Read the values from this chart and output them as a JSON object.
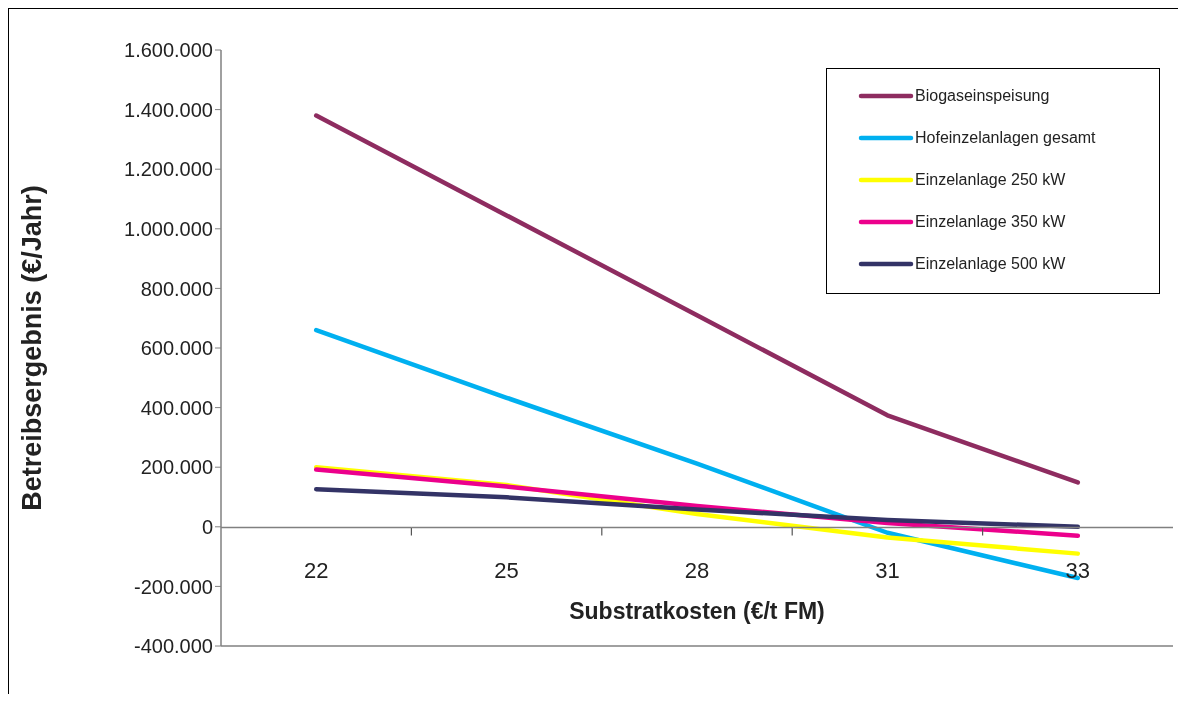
{
  "chart_data": {
    "type": "line",
    "xlabel": "Substratkosten (€/t FM)",
    "ylabel": "Betreibsergebnis (€/Jahr)",
    "categories": [
      "22",
      "25",
      "28",
      "31",
      "33"
    ],
    "series": [
      {
        "name": "Biogaseinspeisung",
        "color": "#8e2c60",
        "values": [
          1380000,
          1045000,
          710000,
          374000,
          149000
        ]
      },
      {
        "name": "Hofeinzelanlagen gesamt",
        "color": "#00b0f0",
        "values": [
          660000,
          433000,
          212000,
          -20000,
          -172000
        ]
      },
      {
        "name": "Einzelanlage 250 kW",
        "color": "#ffff00",
        "values": [
          200000,
          140000,
          43000,
          -36000,
          -90000
        ]
      },
      {
        "name": "Einzelanlage 350 kW",
        "color": "#ec008c",
        "values": [
          192000,
          135000,
          70000,
          13000,
          -30000
        ]
      },
      {
        "name": "Einzelanlage 500 kW",
        "color": "#333366",
        "values": [
          126000,
          99000,
          58000,
          23000,
          0
        ]
      }
    ],
    "ylim": [
      -400000,
      1600000
    ],
    "yticks": [
      {
        "value": -400000,
        "label": "-400.000"
      },
      {
        "value": -200000,
        "label": "-200.000"
      },
      0,
      {
        "value": 200000,
        "label": "200.000"
      },
      {
        "value": 400000,
        "label": "400.000"
      },
      {
        "value": 600000,
        "label": "600.000"
      },
      {
        "value": 800000,
        "label": "800.000"
      },
      {
        "value": 1000000,
        "label": "1.000.000"
      },
      {
        "value": 1200000,
        "label": "1.200.000"
      },
      {
        "value": 1400000,
        "label": "1.400.000"
      },
      {
        "value": 1600000,
        "label": "1.600.000"
      }
    ],
    "legend": "top right",
    "marker": "none",
    "line_style": "solid"
  }
}
